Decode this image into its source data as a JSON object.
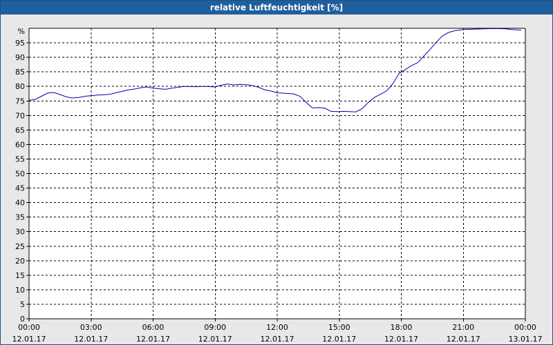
{
  "window": {
    "title": "relative Luftfeuchtigkeit [%]"
  },
  "chart_data": {
    "type": "line",
    "title": "relative Luftfeuchtigkeit [%]",
    "ylabel": "%",
    "xlabel": "",
    "ylim": [
      0,
      100
    ],
    "xlim": [
      0,
      24
    ],
    "grid": true,
    "yticks": [
      0,
      5,
      10,
      15,
      20,
      25,
      30,
      35,
      40,
      45,
      50,
      55,
      60,
      65,
      70,
      75,
      80,
      85,
      90,
      95
    ],
    "xticks": [
      {
        "time": "00:00",
        "date": "12.01.17",
        "value": 0
      },
      {
        "time": "03:00",
        "date": "12.01.17",
        "value": 3
      },
      {
        "time": "06:00",
        "date": "12.01.17",
        "value": 6
      },
      {
        "time": "09:00",
        "date": "12.01.17",
        "value": 9
      },
      {
        "time": "12:00",
        "date": "12.01.17",
        "value": 12
      },
      {
        "time": "15:00",
        "date": "12.01.17",
        "value": 15
      },
      {
        "time": "18:00",
        "date": "12.01.17",
        "value": 18
      },
      {
        "time": "21:00",
        "date": "12.01.17",
        "value": 21
      },
      {
        "time": "00:00",
        "date": "13.01.17",
        "value": 24
      }
    ],
    "colors": {
      "series": "#0000aa",
      "grid": "#000000",
      "plot_bg": "#ffffff"
    },
    "series": [
      {
        "points": [
          [
            0.0,
            75.2
          ],
          [
            0.3,
            75.5
          ],
          [
            0.6,
            76.6
          ],
          [
            0.9,
            77.7
          ],
          [
            1.2,
            77.9
          ],
          [
            1.5,
            77.2
          ],
          [
            1.8,
            76.4
          ],
          [
            2.1,
            76.0
          ],
          [
            2.4,
            76.2
          ],
          [
            2.7,
            76.6
          ],
          [
            3.0,
            76.8
          ],
          [
            3.3,
            77.0
          ],
          [
            3.6,
            77.1
          ],
          [
            3.9,
            77.3
          ],
          [
            4.2,
            77.8
          ],
          [
            4.5,
            78.3
          ],
          [
            4.8,
            78.8
          ],
          [
            5.1,
            79.1
          ],
          [
            5.4,
            79.5
          ],
          [
            5.7,
            79.8
          ],
          [
            6.0,
            79.4
          ],
          [
            6.3,
            79.2
          ],
          [
            6.6,
            79.0
          ],
          [
            6.9,
            79.4
          ],
          [
            7.2,
            79.7
          ],
          [
            7.5,
            80.0
          ],
          [
            8.0,
            79.9
          ],
          [
            8.5,
            80.0
          ],
          [
            9.0,
            79.8
          ],
          [
            9.3,
            80.4
          ],
          [
            9.6,
            80.8
          ],
          [
            9.9,
            80.5
          ],
          [
            10.2,
            80.7
          ],
          [
            10.5,
            80.6
          ],
          [
            10.8,
            80.3
          ],
          [
            11.1,
            79.7
          ],
          [
            11.4,
            78.8
          ],
          [
            11.7,
            78.4
          ],
          [
            12.0,
            77.8
          ],
          [
            12.4,
            77.6
          ],
          [
            12.8,
            77.4
          ],
          [
            13.1,
            76.6
          ],
          [
            13.4,
            74.5
          ],
          [
            13.7,
            72.6
          ],
          [
            14.0,
            72.7
          ],
          [
            14.3,
            72.5
          ],
          [
            14.6,
            71.4
          ],
          [
            14.9,
            71.3
          ],
          [
            15.2,
            71.4
          ],
          [
            15.5,
            71.3
          ],
          [
            15.8,
            71.2
          ],
          [
            16.1,
            72.3
          ],
          [
            16.4,
            74.4
          ],
          [
            16.7,
            76.2
          ],
          [
            17.0,
            77.3
          ],
          [
            17.3,
            78.5
          ],
          [
            17.6,
            81.0
          ],
          [
            17.9,
            84.5
          ],
          [
            18.2,
            85.8
          ],
          [
            18.5,
            87.2
          ],
          [
            18.8,
            88.2
          ],
          [
            19.1,
            90.5
          ],
          [
            19.4,
            92.8
          ],
          [
            19.7,
            95.3
          ],
          [
            20.0,
            97.4
          ],
          [
            20.3,
            98.6
          ],
          [
            20.6,
            99.2
          ],
          [
            21.0,
            99.6
          ],
          [
            21.5,
            99.7
          ],
          [
            22.0,
            99.8
          ],
          [
            22.5,
            99.9
          ],
          [
            23.0,
            99.8
          ],
          [
            23.5,
            99.5
          ],
          [
            23.8,
            99.4
          ]
        ]
      }
    ]
  }
}
